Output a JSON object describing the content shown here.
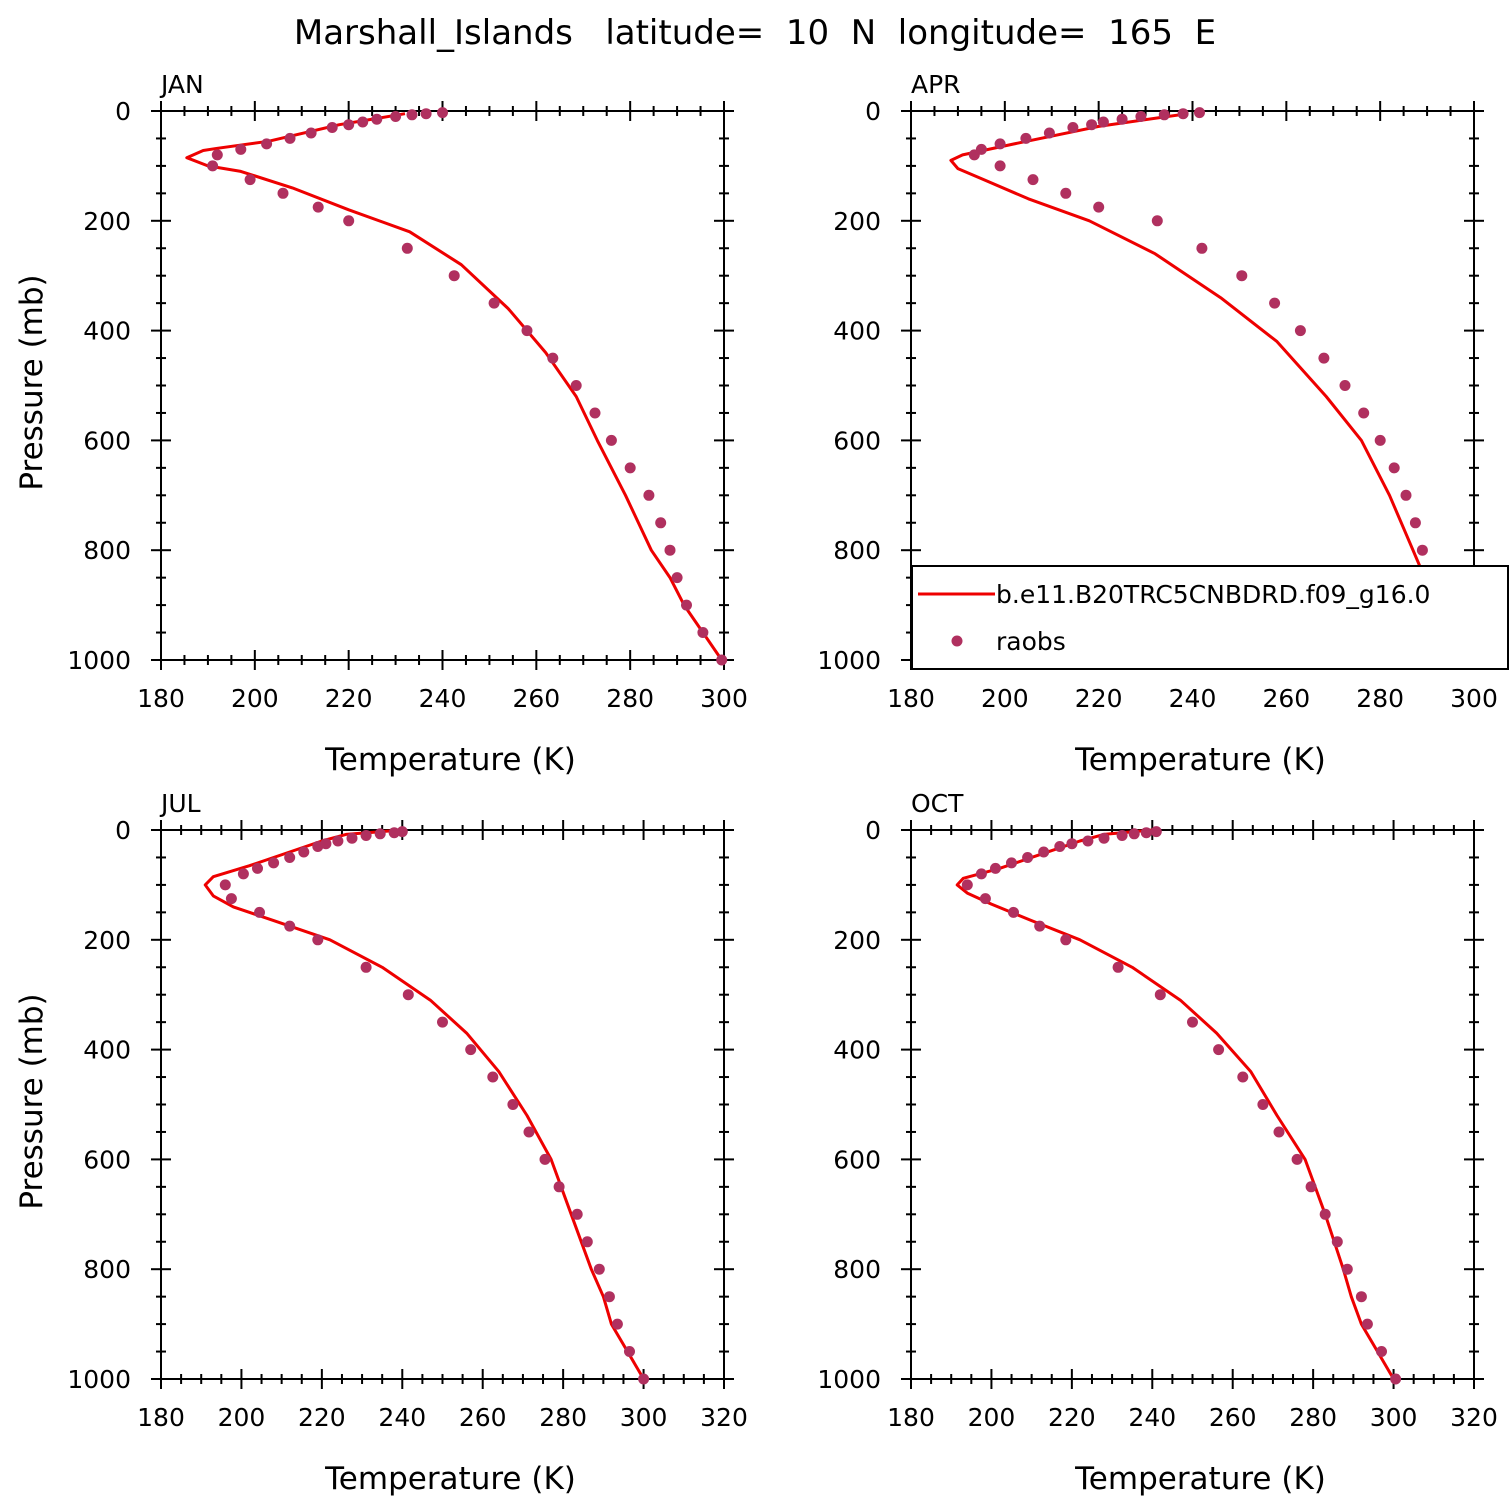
{
  "title": "Marshall_Islands   latitude=  10  N  longitude=  165  E",
  "colors": {
    "model": "#ee0000",
    "obs": "#b0305f",
    "axis": "#000000"
  },
  "legend": {
    "model_label": "b.e11.B20TRC5CNBDRD.f09_g16.0",
    "obs_label": "raobs"
  },
  "chart_data": [
    {
      "type": "line",
      "panel": "JAN",
      "xlabel": "Temperature (K)",
      "ylabel": "Pressure (mb)",
      "xlim": [
        180,
        300
      ],
      "ylim": [
        1000,
        0
      ],
      "xticks": [
        180,
        200,
        220,
        240,
        260,
        280,
        300
      ],
      "yticks": [
        0,
        200,
        400,
        600,
        800,
        1000
      ],
      "series": [
        {
          "name": "b.e11.B20TRC5CNBDRD.f09_g16.0",
          "kind": "line",
          "x": [
            299.5,
            295.5,
            291.5,
            288.5,
            284.5,
            279,
            273,
            268.5,
            262,
            254,
            244,
            233,
            220,
            208,
            197,
            190,
            185.5,
            189,
            192,
            203,
            218,
            232
          ],
          "y": [
            1000,
            950,
            900,
            850,
            800,
            700,
            600,
            520,
            440,
            360,
            280,
            220,
            180,
            140,
            110,
            100,
            85,
            72,
            68,
            55,
            25,
            5
          ]
        },
        {
          "name": "raobs",
          "kind": "scatter",
          "x": [
            299.5,
            295.5,
            292,
            290,
            288.5,
            286.5,
            284,
            280,
            276,
            272.5,
            268.5,
            263.5,
            258,
            251,
            242.5,
            232.5,
            220,
            213.5,
            206,
            199,
            191,
            192,
            197,
            202.5,
            207.5,
            212,
            216.5,
            220,
            223,
            226,
            230,
            233.5,
            236.5,
            240
          ],
          "y": [
            1000,
            950,
            900,
            850,
            800,
            750,
            700,
            650,
            600,
            550,
            500,
            450,
            400,
            350,
            300,
            250,
            200,
            175,
            150,
            125,
            100,
            80,
            70,
            60,
            50,
            40,
            30,
            25,
            20,
            15,
            10,
            7,
            5,
            3
          ]
        }
      ]
    },
    {
      "type": "line",
      "panel": "APR",
      "xlabel": "Temperature (K)",
      "ylabel": "",
      "xlim": [
        180,
        300
      ],
      "ylim": [
        1000,
        0
      ],
      "xticks": [
        180,
        200,
        220,
        240,
        260,
        280,
        300
      ],
      "yticks": [
        0,
        200,
        400,
        600,
        800,
        1000
      ],
      "series": [
        {
          "name": "b.e11.B20TRC5CNBDRD.f09_g16.0",
          "kind": "line",
          "x": [
            300,
            296,
            292,
            289.5,
            287,
            282,
            276,
            268.5,
            258,
            246,
            232,
            218,
            205,
            195.5,
            190,
            188.5,
            191,
            202,
            220,
            233,
            239
          ],
          "y": [
            1000,
            950,
            900,
            850,
            800,
            700,
            600,
            520,
            420,
            340,
            260,
            200,
            160,
            125,
            105,
            90,
            80,
            60,
            28,
            12,
            5
          ]
        },
        {
          "name": "raobs",
          "kind": "scatter",
          "x": [
            300,
            296.5,
            293,
            290.5,
            289,
            287.5,
            285.5,
            283,
            280,
            276.5,
            272.5,
            268,
            263,
            257.5,
            250.5,
            242,
            232.5,
            220,
            213,
            206,
            199,
            193.5,
            195,
            199,
            204.5,
            209.5,
            214.5,
            218.5,
            221,
            225,
            229,
            234,
            238,
            241.5
          ],
          "y": [
            1000,
            950,
            900,
            850,
            800,
            750,
            700,
            650,
            600,
            550,
            500,
            450,
            400,
            350,
            300,
            250,
            200,
            175,
            150,
            125,
            100,
            80,
            70,
            60,
            50,
            40,
            30,
            25,
            20,
            15,
            10,
            7,
            5,
            3
          ]
        }
      ]
    },
    {
      "type": "line",
      "panel": "JUL",
      "xlabel": "Temperature (K)",
      "ylabel": "Pressure (mb)",
      "xlim": [
        180,
        320
      ],
      "ylim": [
        1000,
        0
      ],
      "xticks": [
        180,
        200,
        220,
        240,
        260,
        280,
        300,
        320
      ],
      "yticks": [
        0,
        200,
        400,
        600,
        800,
        1000
      ],
      "series": [
        {
          "name": "b.e11.B20TRC5CNBDRD.f09_g16.0",
          "kind": "line",
          "x": [
            300,
            296,
            292,
            290,
            287,
            282,
            277,
            271,
            264,
            256,
            247,
            235,
            222,
            208,
            198,
            193,
            191,
            193,
            202,
            212,
            220,
            226,
            240
          ],
          "y": [
            1000,
            950,
            900,
            850,
            800,
            700,
            600,
            520,
            440,
            370,
            310,
            250,
            200,
            165,
            140,
            120,
            100,
            85,
            65,
            40,
            20,
            8,
            0
          ]
        },
        {
          "name": "raobs",
          "kind": "scatter",
          "x": [
            300,
            296.5,
            293.5,
            291.5,
            289,
            286,
            283.5,
            279,
            275.5,
            271.5,
            267.5,
            262.5,
            257,
            250,
            241.5,
            231,
            219,
            212,
            204.5,
            197.5,
            196,
            200.5,
            204,
            208,
            212,
            215.5,
            219,
            221,
            224,
            227.5,
            231,
            234.5,
            238,
            240
          ],
          "y": [
            1000,
            950,
            900,
            850,
            800,
            750,
            700,
            650,
            600,
            550,
            500,
            450,
            400,
            350,
            300,
            250,
            200,
            175,
            150,
            125,
            100,
            80,
            70,
            60,
            50,
            40,
            30,
            25,
            20,
            15,
            10,
            7,
            5,
            3
          ]
        }
      ]
    },
    {
      "type": "line",
      "panel": "OCT",
      "xlabel": "Temperature (K)",
      "ylabel": "",
      "xlim": [
        180,
        320
      ],
      "ylim": [
        1000,
        0
      ],
      "xticks": [
        180,
        200,
        220,
        240,
        260,
        280,
        300,
        320
      ],
      "yticks": [
        0,
        200,
        400,
        600,
        800,
        1000
      ],
      "series": [
        {
          "name": "b.e11.B20TRC5CNBDRD.f09_g16.0",
          "kind": "line",
          "x": [
            300,
            296,
            292,
            289.5,
            287.5,
            283,
            278,
            271,
            264.5,
            256,
            247,
            235,
            222,
            210,
            200,
            194,
            191.5,
            193,
            202,
            212,
            222,
            228,
            240
          ],
          "y": [
            1000,
            950,
            900,
            850,
            800,
            700,
            600,
            520,
            440,
            370,
            310,
            250,
            200,
            165,
            135,
            115,
            100,
            88,
            70,
            45,
            20,
            8,
            0
          ]
        },
        {
          "name": "raobs",
          "kind": "scatter",
          "x": [
            300.5,
            297,
            293.5,
            292,
            288.5,
            286,
            283,
            279.5,
            276,
            271.5,
            267.5,
            262.5,
            256.5,
            250,
            242,
            231.5,
            218.5,
            212,
            205.5,
            198.5,
            194,
            197.5,
            201,
            205,
            209,
            213,
            217,
            220,
            224,
            228,
            232.5,
            235.5,
            238.5,
            241
          ],
          "y": [
            1000,
            950,
            900,
            850,
            800,
            750,
            700,
            650,
            600,
            550,
            500,
            450,
            400,
            350,
            300,
            250,
            200,
            175,
            150,
            125,
            100,
            80,
            70,
            60,
            50,
            40,
            30,
            25,
            20,
            15,
            10,
            7,
            5,
            3
          ]
        }
      ]
    }
  ]
}
